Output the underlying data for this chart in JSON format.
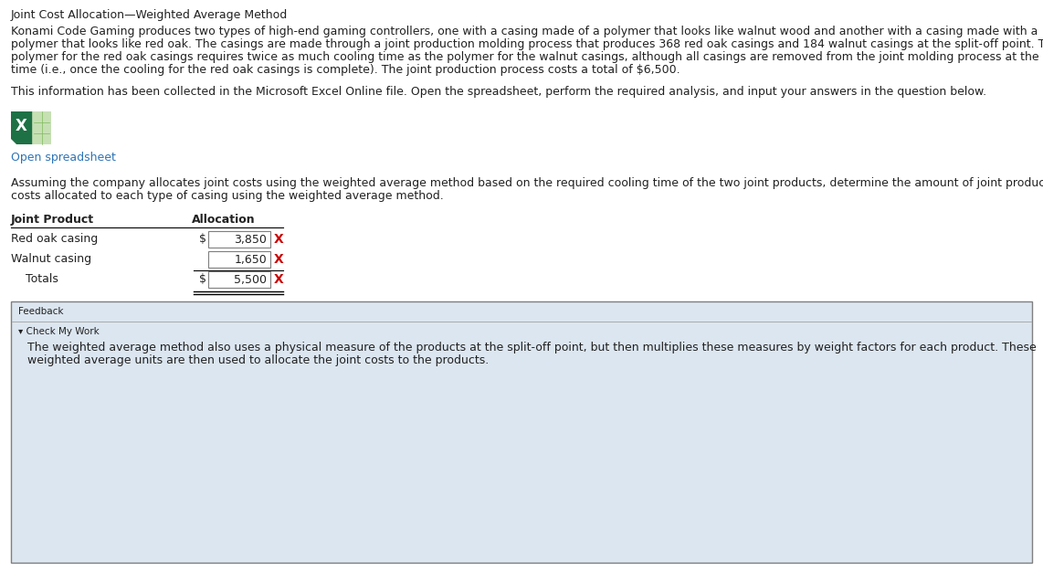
{
  "title": "Joint Cost Allocation—Weighted Average Method",
  "bg_color": "#ffffff",
  "paragraph1_lines": [
    "Konami Code Gaming produces two types of high-end gaming controllers, one with a casing made of a polymer that looks like walnut wood and another with a casing made with a",
    "polymer that looks like red oak. The casings are made through a joint production molding process that produces 368 red oak casings and 184 walnut casings at the split-off point. The",
    "polymer for the red oak casings requires twice as much cooling time as the polymer for the walnut casings, although all casings are removed from the joint molding process at the same",
    "time (i.e., once the cooling for the red oak casings is complete). The joint production process costs a total of $6,500."
  ],
  "paragraph2": "This information has been collected in the Microsoft Excel Online file. Open the spreadsheet, perform the required analysis, and input your answers in the question below.",
  "open_spreadsheet": "Open spreadsheet",
  "paragraph3_lines": [
    "Assuming the company allocates joint costs using the weighted average method based on the required cooling time of the two joint products, determine the amount of joint production",
    "costs allocated to each type of casing using the weighted average method."
  ],
  "table_header_col1": "Joint Product",
  "table_header_col2": "Allocation",
  "table_rows": [
    {
      "label": "Red oak casing",
      "dollar_sign": true,
      "value": "3,850",
      "mark": "X"
    },
    {
      "label": "Walnut casing",
      "dollar_sign": false,
      "value": "1,650",
      "mark": "X"
    },
    {
      "label": "Totals",
      "dollar_sign": true,
      "value": "5,500",
      "mark": "X"
    }
  ],
  "feedback_label": "Feedback",
  "check_my_work": "▾ Check My Work",
  "feedback_text_lines": [
    "The weighted average method also uses a physical measure of the products at the split-off point, but then multiplies these measures by weight factors for each product. These",
    "weighted average units are then used to allocate the joint costs to the products."
  ],
  "excel_green": "#1e7145",
  "excel_light": "#c6e0b4",
  "excel_grid": "#7dba5a",
  "link_color": "#2e74b5",
  "text_color": "#212121",
  "feedback_bg": "#dce6f0",
  "feedback_border": "#7f7f7f",
  "input_bg": "#ffffff",
  "input_border": "#7f7f7f",
  "x_color": "#cc0000",
  "sep_color": "#aaaaaa"
}
